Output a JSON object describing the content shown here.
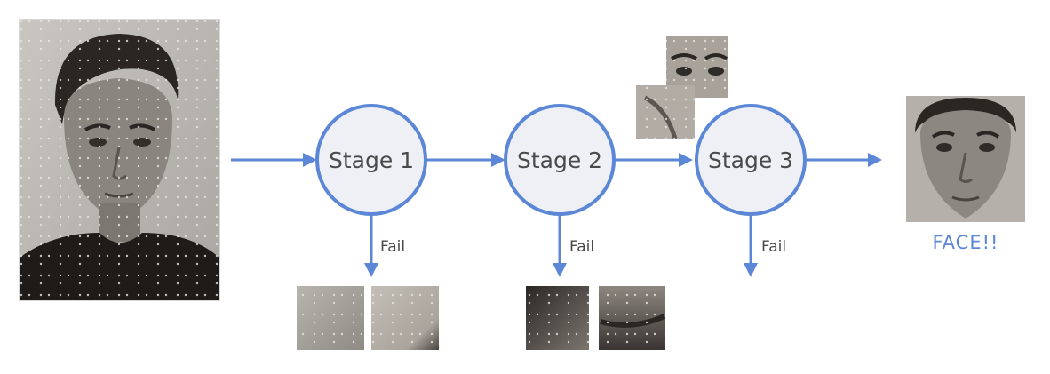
{
  "diagram": {
    "stages": [
      {
        "label": "Stage 1",
        "fail_label": "Fail"
      },
      {
        "label": "Stage 2",
        "fail_label": "Fail"
      },
      {
        "label": "Stage 3",
        "fail_label": "Fail"
      }
    ],
    "result_label": "FACE!!",
    "colors": {
      "accent": "#5b87d6",
      "circle_fill": "#eef0f6",
      "text": "#4a4a4a"
    }
  }
}
